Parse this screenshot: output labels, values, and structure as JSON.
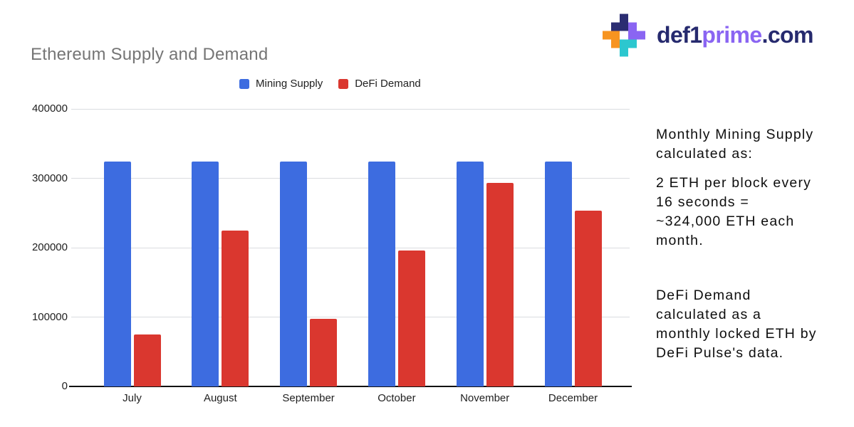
{
  "page": {
    "background": "#ffffff"
  },
  "logo": {
    "text_parts": {
      "defi": "def1",
      "prime": "prime",
      "dotcom": ".com"
    },
    "colors": {
      "navy": "#2b2d72",
      "orange": "#f79420",
      "purple": "#8a65f2",
      "teal": "#2cc7cf",
      "text_navy": "#262a6e",
      "text_purple": "#8a65f2"
    }
  },
  "chart_data": {
    "type": "bar",
    "title": "Ethereum Supply and Demand",
    "title_color": "#757575",
    "categories": [
      "July",
      "August",
      "September",
      "October",
      "November",
      "December"
    ],
    "series": [
      {
        "name": "Mining Supply",
        "color": "#3d6ce0",
        "values": [
          324000,
          324000,
          324000,
          324000,
          324000,
          324000
        ]
      },
      {
        "name": "DeFi Demand",
        "color": "#da372f",
        "values": [
          75000,
          225000,
          97000,
          196000,
          293000,
          253000
        ]
      }
    ],
    "ylim": [
      0,
      400000
    ],
    "yticks": [
      0,
      100000,
      200000,
      300000,
      400000
    ],
    "grid": "horizontal",
    "legend_position": "top-center",
    "axis_label_color": "#1f1f1f",
    "gridline_color": "#dadce0"
  },
  "side_notes": {
    "note1": {
      "lines": [
        "Monthly Mining Supply",
        "calculated as:"
      ]
    },
    "note2": {
      "lines": [
        "2 ETH per block every",
        "16 seconds =",
        "~324,000 ETH each",
        "month."
      ]
    },
    "note3": {
      "lines": [
        "DeFi Demand",
        "calculated as a",
        "monthly locked ETH by",
        "DeFi Pulse's data."
      ]
    }
  }
}
